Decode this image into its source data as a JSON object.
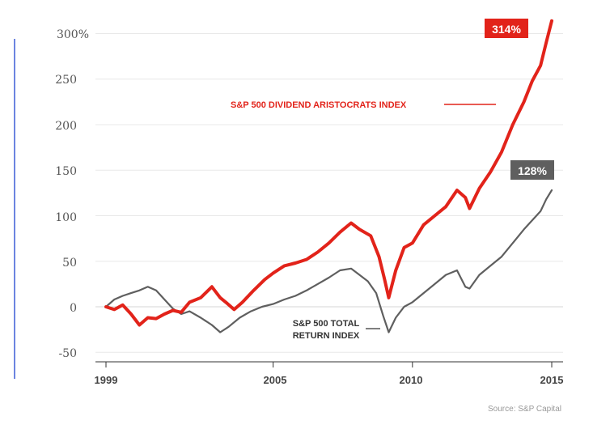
{
  "chart_data": {
    "type": "line",
    "x_ticks": [
      "1999",
      "2005",
      "2010",
      "2015"
    ],
    "y_ticks": [
      "300%",
      "250",
      "200",
      "150",
      "100",
      "50",
      "0",
      "-50"
    ],
    "ylim": [
      -50,
      300
    ],
    "xlim": [
      1999,
      2015
    ],
    "grid": true,
    "series": [
      {
        "name": "S&P 500 DIVIDEND ARISTOCRATS INDEX",
        "color": "#e2231a",
        "end_label": "314%",
        "points": [
          [
            1999.0,
            0
          ],
          [
            1999.3,
            -3
          ],
          [
            1999.6,
            2
          ],
          [
            1999.9,
            -8
          ],
          [
            2000.2,
            -20
          ],
          [
            2000.5,
            -12
          ],
          [
            2000.8,
            -13
          ],
          [
            2001.1,
            -8
          ],
          [
            2001.4,
            -4
          ],
          [
            2001.7,
            -6
          ],
          [
            2002.0,
            5
          ],
          [
            2002.4,
            10
          ],
          [
            2002.8,
            22
          ],
          [
            2003.1,
            10
          ],
          [
            2003.3,
            5
          ],
          [
            2003.6,
            -3
          ],
          [
            2003.9,
            5
          ],
          [
            2004.3,
            18
          ],
          [
            2004.7,
            30
          ],
          [
            2005.0,
            37
          ],
          [
            2005.4,
            45
          ],
          [
            2005.8,
            48
          ],
          [
            2006.2,
            52
          ],
          [
            2006.6,
            60
          ],
          [
            2007.0,
            70
          ],
          [
            2007.4,
            82
          ],
          [
            2007.8,
            92
          ],
          [
            2008.1,
            85
          ],
          [
            2008.5,
            78
          ],
          [
            2008.8,
            55
          ],
          [
            2009.0,
            30
          ],
          [
            2009.15,
            10
          ],
          [
            2009.4,
            40
          ],
          [
            2009.7,
            65
          ],
          [
            2010.0,
            70
          ],
          [
            2010.4,
            90
          ],
          [
            2010.8,
            100
          ],
          [
            2011.2,
            110
          ],
          [
            2011.6,
            128
          ],
          [
            2011.9,
            120
          ],
          [
            2012.05,
            108
          ],
          [
            2012.4,
            130
          ],
          [
            2012.8,
            148
          ],
          [
            2013.2,
            170
          ],
          [
            2013.6,
            200
          ],
          [
            2014.0,
            225
          ],
          [
            2014.3,
            248
          ],
          [
            2014.6,
            265
          ],
          [
            2014.8,
            290
          ],
          [
            2015.0,
            314
          ]
        ]
      },
      {
        "name": "S&P 500 TOTAL RETURN INDEX",
        "color": "#5f5f5f",
        "end_label": "128%",
        "points": [
          [
            1999.0,
            0
          ],
          [
            1999.3,
            8
          ],
          [
            1999.6,
            12
          ],
          [
            1999.9,
            15
          ],
          [
            2000.2,
            18
          ],
          [
            2000.5,
            22
          ],
          [
            2000.8,
            18
          ],
          [
            2001.1,
            8
          ],
          [
            2001.4,
            -2
          ],
          [
            2001.7,
            -8
          ],
          [
            2002.0,
            -5
          ],
          [
            2002.4,
            -12
          ],
          [
            2002.8,
            -20
          ],
          [
            2003.1,
            -28
          ],
          [
            2003.4,
            -22
          ],
          [
            2003.8,
            -12
          ],
          [
            2004.2,
            -5
          ],
          [
            2004.6,
            0
          ],
          [
            2005.0,
            3
          ],
          [
            2005.4,
            8
          ],
          [
            2005.8,
            12
          ],
          [
            2006.2,
            18
          ],
          [
            2006.6,
            25
          ],
          [
            2007.0,
            32
          ],
          [
            2007.4,
            40
          ],
          [
            2007.8,
            42
          ],
          [
            2008.1,
            35
          ],
          [
            2008.4,
            28
          ],
          [
            2008.7,
            15
          ],
          [
            2008.95,
            -10
          ],
          [
            2009.15,
            -28
          ],
          [
            2009.4,
            -12
          ],
          [
            2009.7,
            0
          ],
          [
            2010.0,
            5
          ],
          [
            2010.4,
            15
          ],
          [
            2010.8,
            25
          ],
          [
            2011.2,
            35
          ],
          [
            2011.6,
            40
          ],
          [
            2011.9,
            22
          ],
          [
            2012.05,
            20
          ],
          [
            2012.4,
            35
          ],
          [
            2012.8,
            45
          ],
          [
            2013.2,
            55
          ],
          [
            2013.6,
            70
          ],
          [
            2014.0,
            85
          ],
          [
            2014.3,
            95
          ],
          [
            2014.6,
            105
          ],
          [
            2014.8,
            118
          ],
          [
            2015.0,
            128
          ]
        ]
      }
    ],
    "annotations": {
      "red_label": "S&P 500 DIVIDEND ARISTOCRATS INDEX",
      "gray_label_line1": "S&P 500 TOTAL",
      "gray_label_line2": "RETURN INDEX"
    },
    "source": "Source: S&P Capital"
  }
}
